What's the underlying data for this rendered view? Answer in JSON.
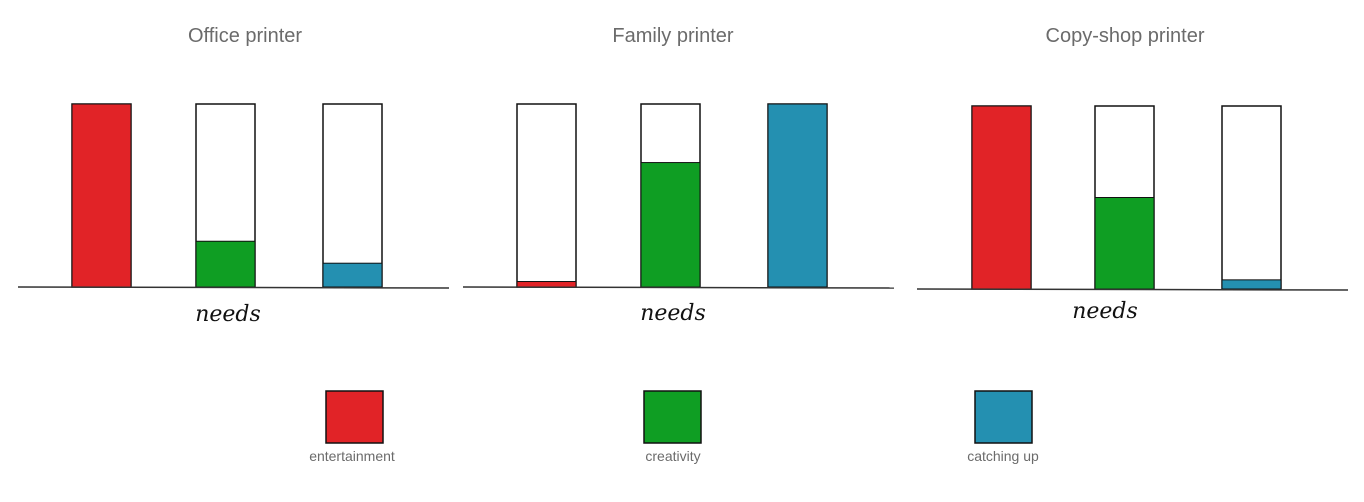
{
  "chart_data": [
    {
      "type": "bar",
      "title": "Office printer",
      "xlabel": "needs",
      "categories": [
        "entertainment",
        "creativity",
        "catching up"
      ],
      "values": [
        100,
        25,
        13
      ],
      "ylim": [
        0,
        100
      ]
    },
    {
      "type": "bar",
      "title": "Family printer",
      "xlabel": "needs",
      "categories": [
        "entertainment",
        "creativity",
        "catching up"
      ],
      "values": [
        3,
        68,
        100
      ],
      "ylim": [
        0,
        100
      ]
    },
    {
      "type": "bar",
      "title": "Copy-shop printer",
      "xlabel": "needs",
      "categories": [
        "entertainment",
        "creativity",
        "catching up"
      ],
      "values": [
        100,
        50,
        5
      ],
      "ylim": [
        0,
        100
      ]
    }
  ],
  "legend": [
    {
      "label": "entertainment",
      "color": "#e12327"
    },
    {
      "label": "creativity",
      "color": "#0f9e23"
    },
    {
      "label": "catching up",
      "color": "#2490b1"
    }
  ]
}
